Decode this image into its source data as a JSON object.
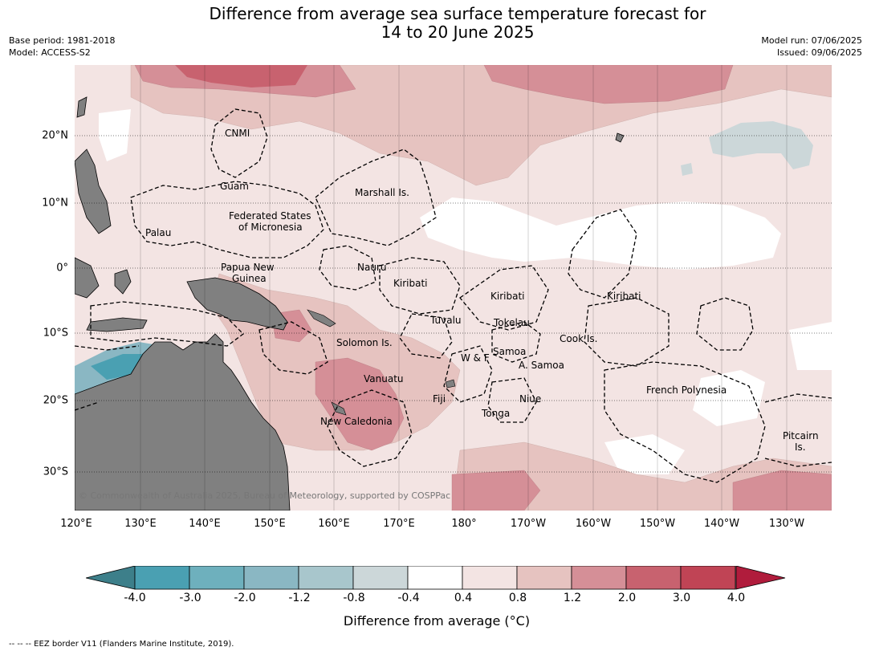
{
  "title_line1": "Difference from average sea surface temperature forecast for",
  "title_line2": "14 to 20 June 2025",
  "base_period": "Base period: 1981-2018",
  "model": "Model: ACCESS-S2",
  "model_run": "Model run: 07/06/2025",
  "issued": "Issued: 09/06/2025",
  "lat_labels": [
    "20°N",
    "10°N",
    "0°",
    "10°S",
    "20°S",
    "30°S"
  ],
  "lon_labels": [
    "120°E",
    "130°E",
    "140°E",
    "150°E",
    "160°E",
    "170°E",
    "180°",
    "170°W",
    "160°W",
    "150°W",
    "140°W",
    "130°W"
  ],
  "places": {
    "cnmi": "CNMI",
    "guam": "Guam",
    "marshall": "Marshall Is.",
    "fsm1": "Federated States",
    "fsm2": "of Micronesia",
    "palau": "Palau",
    "png1": "Papua New",
    "png2": "Guinea",
    "nauru": "Nauru",
    "kiribati_w": "Kiribati",
    "kiribati_c": "Kiribati",
    "kiribati_e": "Kiribati",
    "tuvalu": "Tuvalu",
    "tokelau": "Tokelau",
    "cook": "Cook Is.",
    "solomon": "Solomon Is.",
    "samoa": "Samoa",
    "wf": "W & F",
    "asamoa": "A. Samoa",
    "vanuatu": "Vanuatu",
    "fiji": "Fiji",
    "niue": "Niue",
    "tonga": "Tonga",
    "frpoly": "French Polynesia",
    "newcal": "New Caledonia",
    "pitcairn1": "Pitcairn",
    "pitcairn2": "Is."
  },
  "copyright": "© Commonwealth of Australia 2025, Bureau of Meteorology, supported by COSPPac",
  "colorbar": {
    "ticks": [
      "-4.0",
      "-3.0",
      "-2.0",
      "-1.2",
      "-0.8",
      "-0.4",
      "0.4",
      "0.8",
      "1.2",
      "2.0",
      "3.0",
      "4.0"
    ],
    "colors": [
      "#4aa0b2",
      "#6eb0bd",
      "#8ab7c3",
      "#a8c6cc",
      "#ccd7d9",
      "#ffffff",
      "#f3e4e3",
      "#e6c3c0",
      "#d58f97",
      "#c8626f",
      "#c04455"
    ],
    "under_color": "#3d7f8a",
    "over_color": "#b01c3c",
    "label": "Difference from average (°C)"
  },
  "footer": "-- -- -- EEZ border V11 (Flanders Marine Institute, 2019)."
}
